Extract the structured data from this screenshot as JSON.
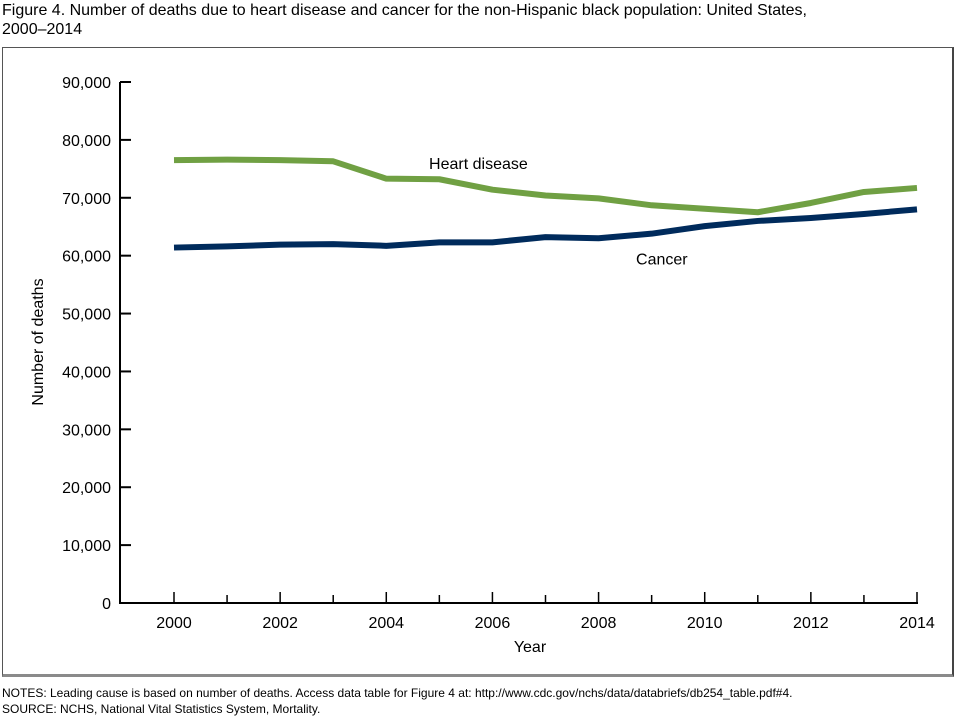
{
  "chart_data": {
    "type": "line",
    "title": "Figure 4. Number of deaths due to heart disease and cancer for the non-Hispanic black population: United States, 2000–2014",
    "title_line1": "Figure 4. Number of deaths due to heart disease and cancer for the non-Hispanic black population: United States,",
    "title_line2": "2000–2014",
    "xlabel": "Year",
    "ylabel": "Number of deaths",
    "x": [
      2000,
      2001,
      2002,
      2003,
      2004,
      2005,
      2006,
      2007,
      2008,
      2009,
      2010,
      2011,
      2012,
      2013,
      2014
    ],
    "xlim": [
      1999,
      2014
    ],
    "x_tick_labels": [
      "2000",
      "2002",
      "2004",
      "2006",
      "2008",
      "2010",
      "2012",
      "2014"
    ],
    "x_tick_values": [
      2000,
      2002,
      2004,
      2006,
      2008,
      2010,
      2012,
      2014
    ],
    "ylim": [
      0,
      90000
    ],
    "y_tick_values": [
      0,
      10000,
      20000,
      30000,
      40000,
      50000,
      60000,
      70000,
      80000,
      90000
    ],
    "y_tick_labels": [
      "0",
      "10,000",
      "20,000",
      "30,000",
      "40,000",
      "50,000",
      "60,000",
      "70,000",
      "80,000",
      "90,000"
    ],
    "grid": false,
    "legend": "inline labels",
    "series": [
      {
        "name": "Heart disease",
        "color": "#70a043",
        "values": [
          76500,
          76600,
          76500,
          76300,
          73300,
          73200,
          71400,
          70400,
          69900,
          68700,
          68100,
          67500,
          69100,
          71000,
          71700
        ]
      },
      {
        "name": "Cancer",
        "color": "#002b5c",
        "values": [
          61400,
          61600,
          61900,
          62000,
          61700,
          62300,
          62300,
          63200,
          63000,
          63800,
          65100,
          66000,
          66500,
          67200,
          68000
        ]
      }
    ],
    "annotations": [
      {
        "text": "Heart disease",
        "series": "Heart disease",
        "x": 2004.9,
        "y": 76000
      },
      {
        "text": "Cancer",
        "series": "Cancer",
        "x": 2008.8,
        "y": 59500
      }
    ]
  },
  "notes": {
    "line1": "NOTES: Leading cause is based on number of deaths. Access data table for Figure 4 at: http://www.cdc.gov/nchs/data/databriefs/db254_table.pdf#4.",
    "line2": "SOURCE: NCHS, National Vital Statistics System, Mortality."
  }
}
